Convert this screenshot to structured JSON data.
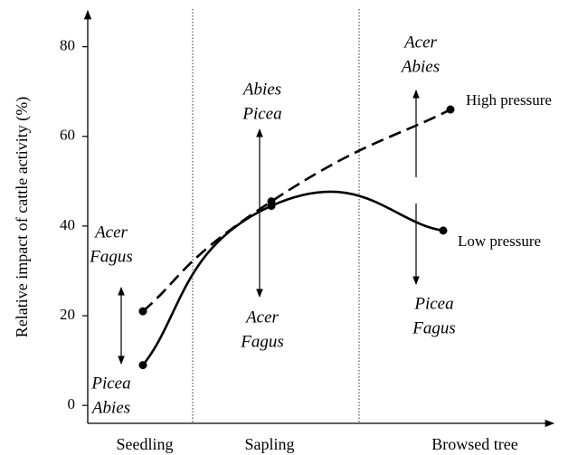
{
  "chart_data": {
    "type": "line",
    "y_label": "Relative impact of cattle activity (%)",
    "categories": [
      "Seedling",
      "Sapling",
      "Browsed tree"
    ],
    "series": [
      {
        "name": "High pressure",
        "color": "#000000",
        "dashed": true,
        "values": [
          21,
          45.5,
          66
        ]
      },
      {
        "name": "Low pressure",
        "color": "#000000",
        "dashed": false,
        "values": [
          9,
          44.5,
          39
        ]
      }
    ],
    "ylim": [
      -4,
      88
    ],
    "yticks": [
      0,
      20,
      40,
      60,
      80
    ],
    "annotations": [
      [
        "Acer",
        "Fagus"
      ],
      [
        "Picea",
        "Abies"
      ],
      [
        "Abies",
        "Picea"
      ],
      [
        "Acer",
        "Fagus"
      ],
      [
        "Acer",
        "Abies"
      ],
      [
        "Picea",
        "Fagus"
      ]
    ]
  }
}
